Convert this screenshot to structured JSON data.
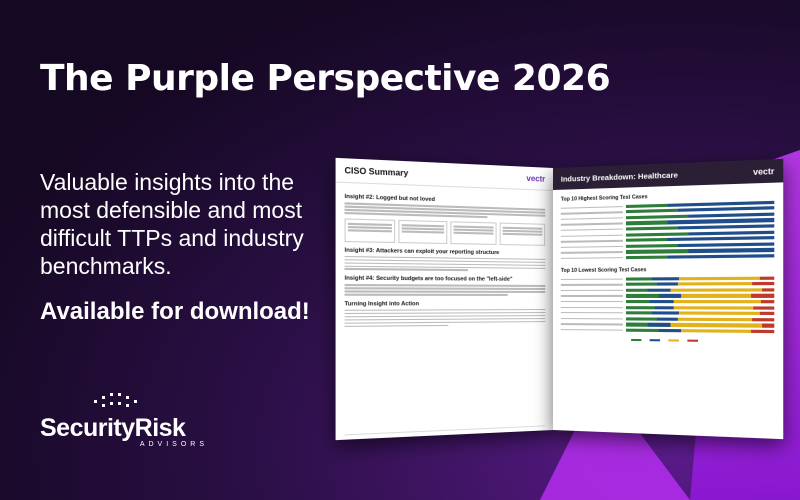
{
  "headline": "The Purple Perspective 2026",
  "subheadline": "Valuable insights into the most defensible and most difficult TTPs and industry benchmarks.",
  "cta": "Available for download!",
  "brand": {
    "name": "SecurityRisk",
    "tagline": "ADVISORS"
  },
  "report_left_page": {
    "section_title": "CISO Summary",
    "logo_text": "vectr",
    "headings": [
      "Insight #2: Logged but not loved",
      "Insight #3: Attackers can exploit your reporting structure",
      "Insight #4: Security budgets are too focused on the \"left-side\"",
      "Turning Insight into Action"
    ]
  },
  "report_right_page": {
    "section_title": "Industry Breakdown: Healthcare",
    "logo_text": "vectr",
    "chart_titles": [
      "Top 10 Highest Scoring Test Cases",
      "Top 10 Lowest Scoring Test Cases"
    ]
  },
  "colors": {
    "accent_purple": "#a51fe8",
    "background_dark": "#1a0a2a",
    "bar_green": "#2f7d3a",
    "bar_blue": "#1f4e8a",
    "bar_yellow": "#e2b21b",
    "bar_red": "#c0392b"
  }
}
